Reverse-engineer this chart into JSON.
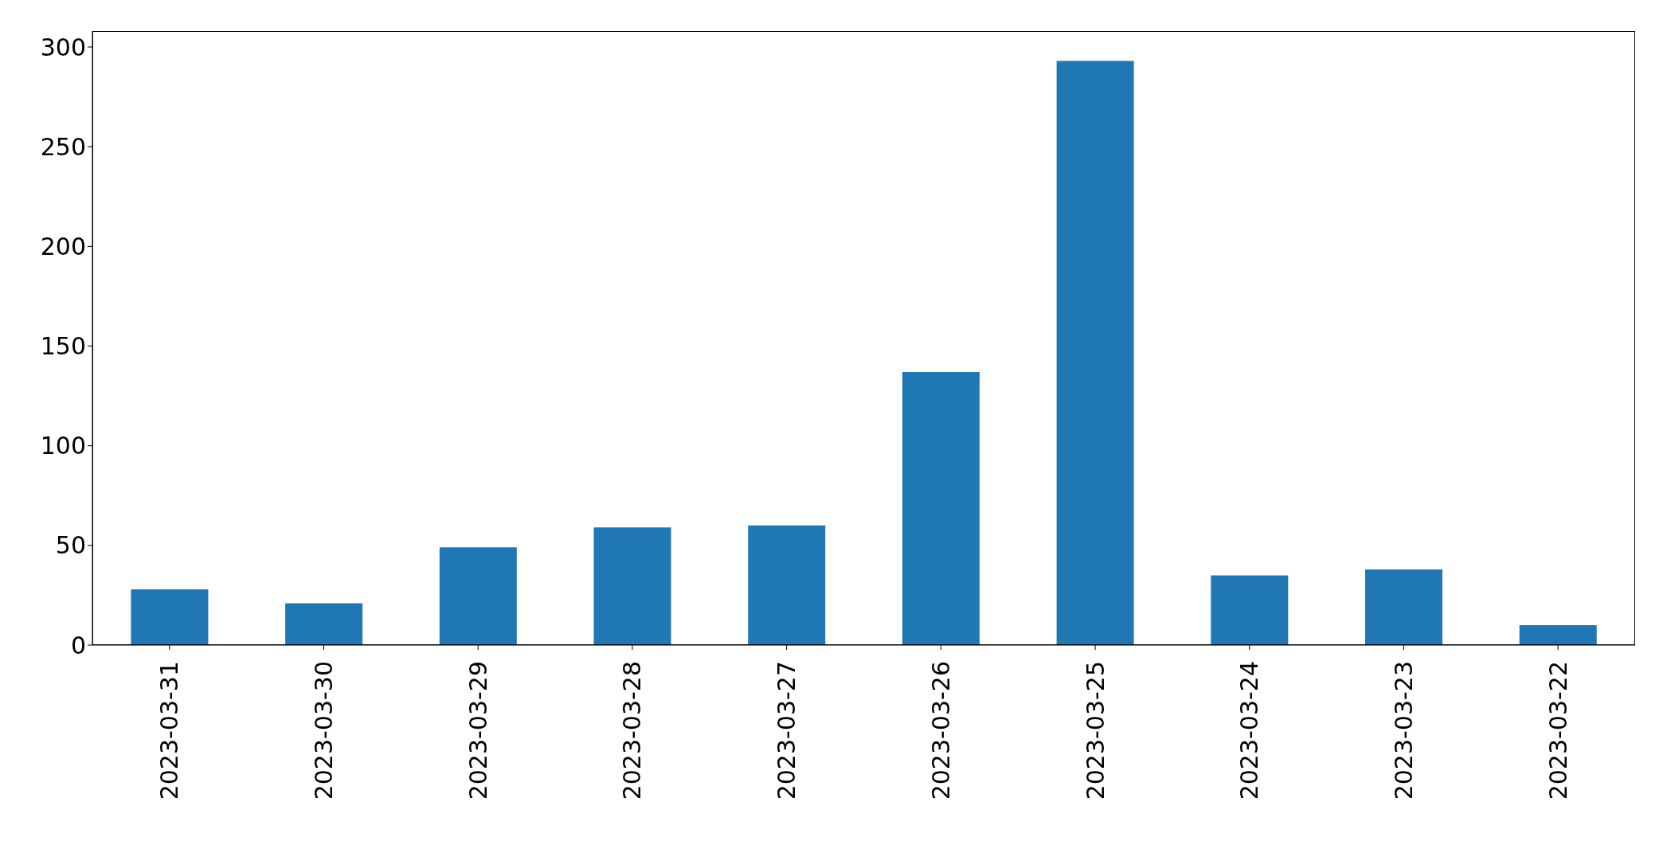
{
  "chart_data": {
    "type": "bar",
    "categories": [
      "2023-03-31",
      "2023-03-30",
      "2023-03-29",
      "2023-03-28",
      "2023-03-27",
      "2023-03-26",
      "2023-03-25",
      "2023-03-24",
      "2023-03-23",
      "2023-03-22"
    ],
    "values": [
      28,
      21,
      49,
      59,
      60,
      137,
      293,
      35,
      38,
      10
    ],
    "color": "#1f77b4",
    "ylim": [
      0,
      308
    ],
    "yticks": [
      0,
      50,
      100,
      150,
      200,
      250,
      300
    ],
    "grid": false
  }
}
